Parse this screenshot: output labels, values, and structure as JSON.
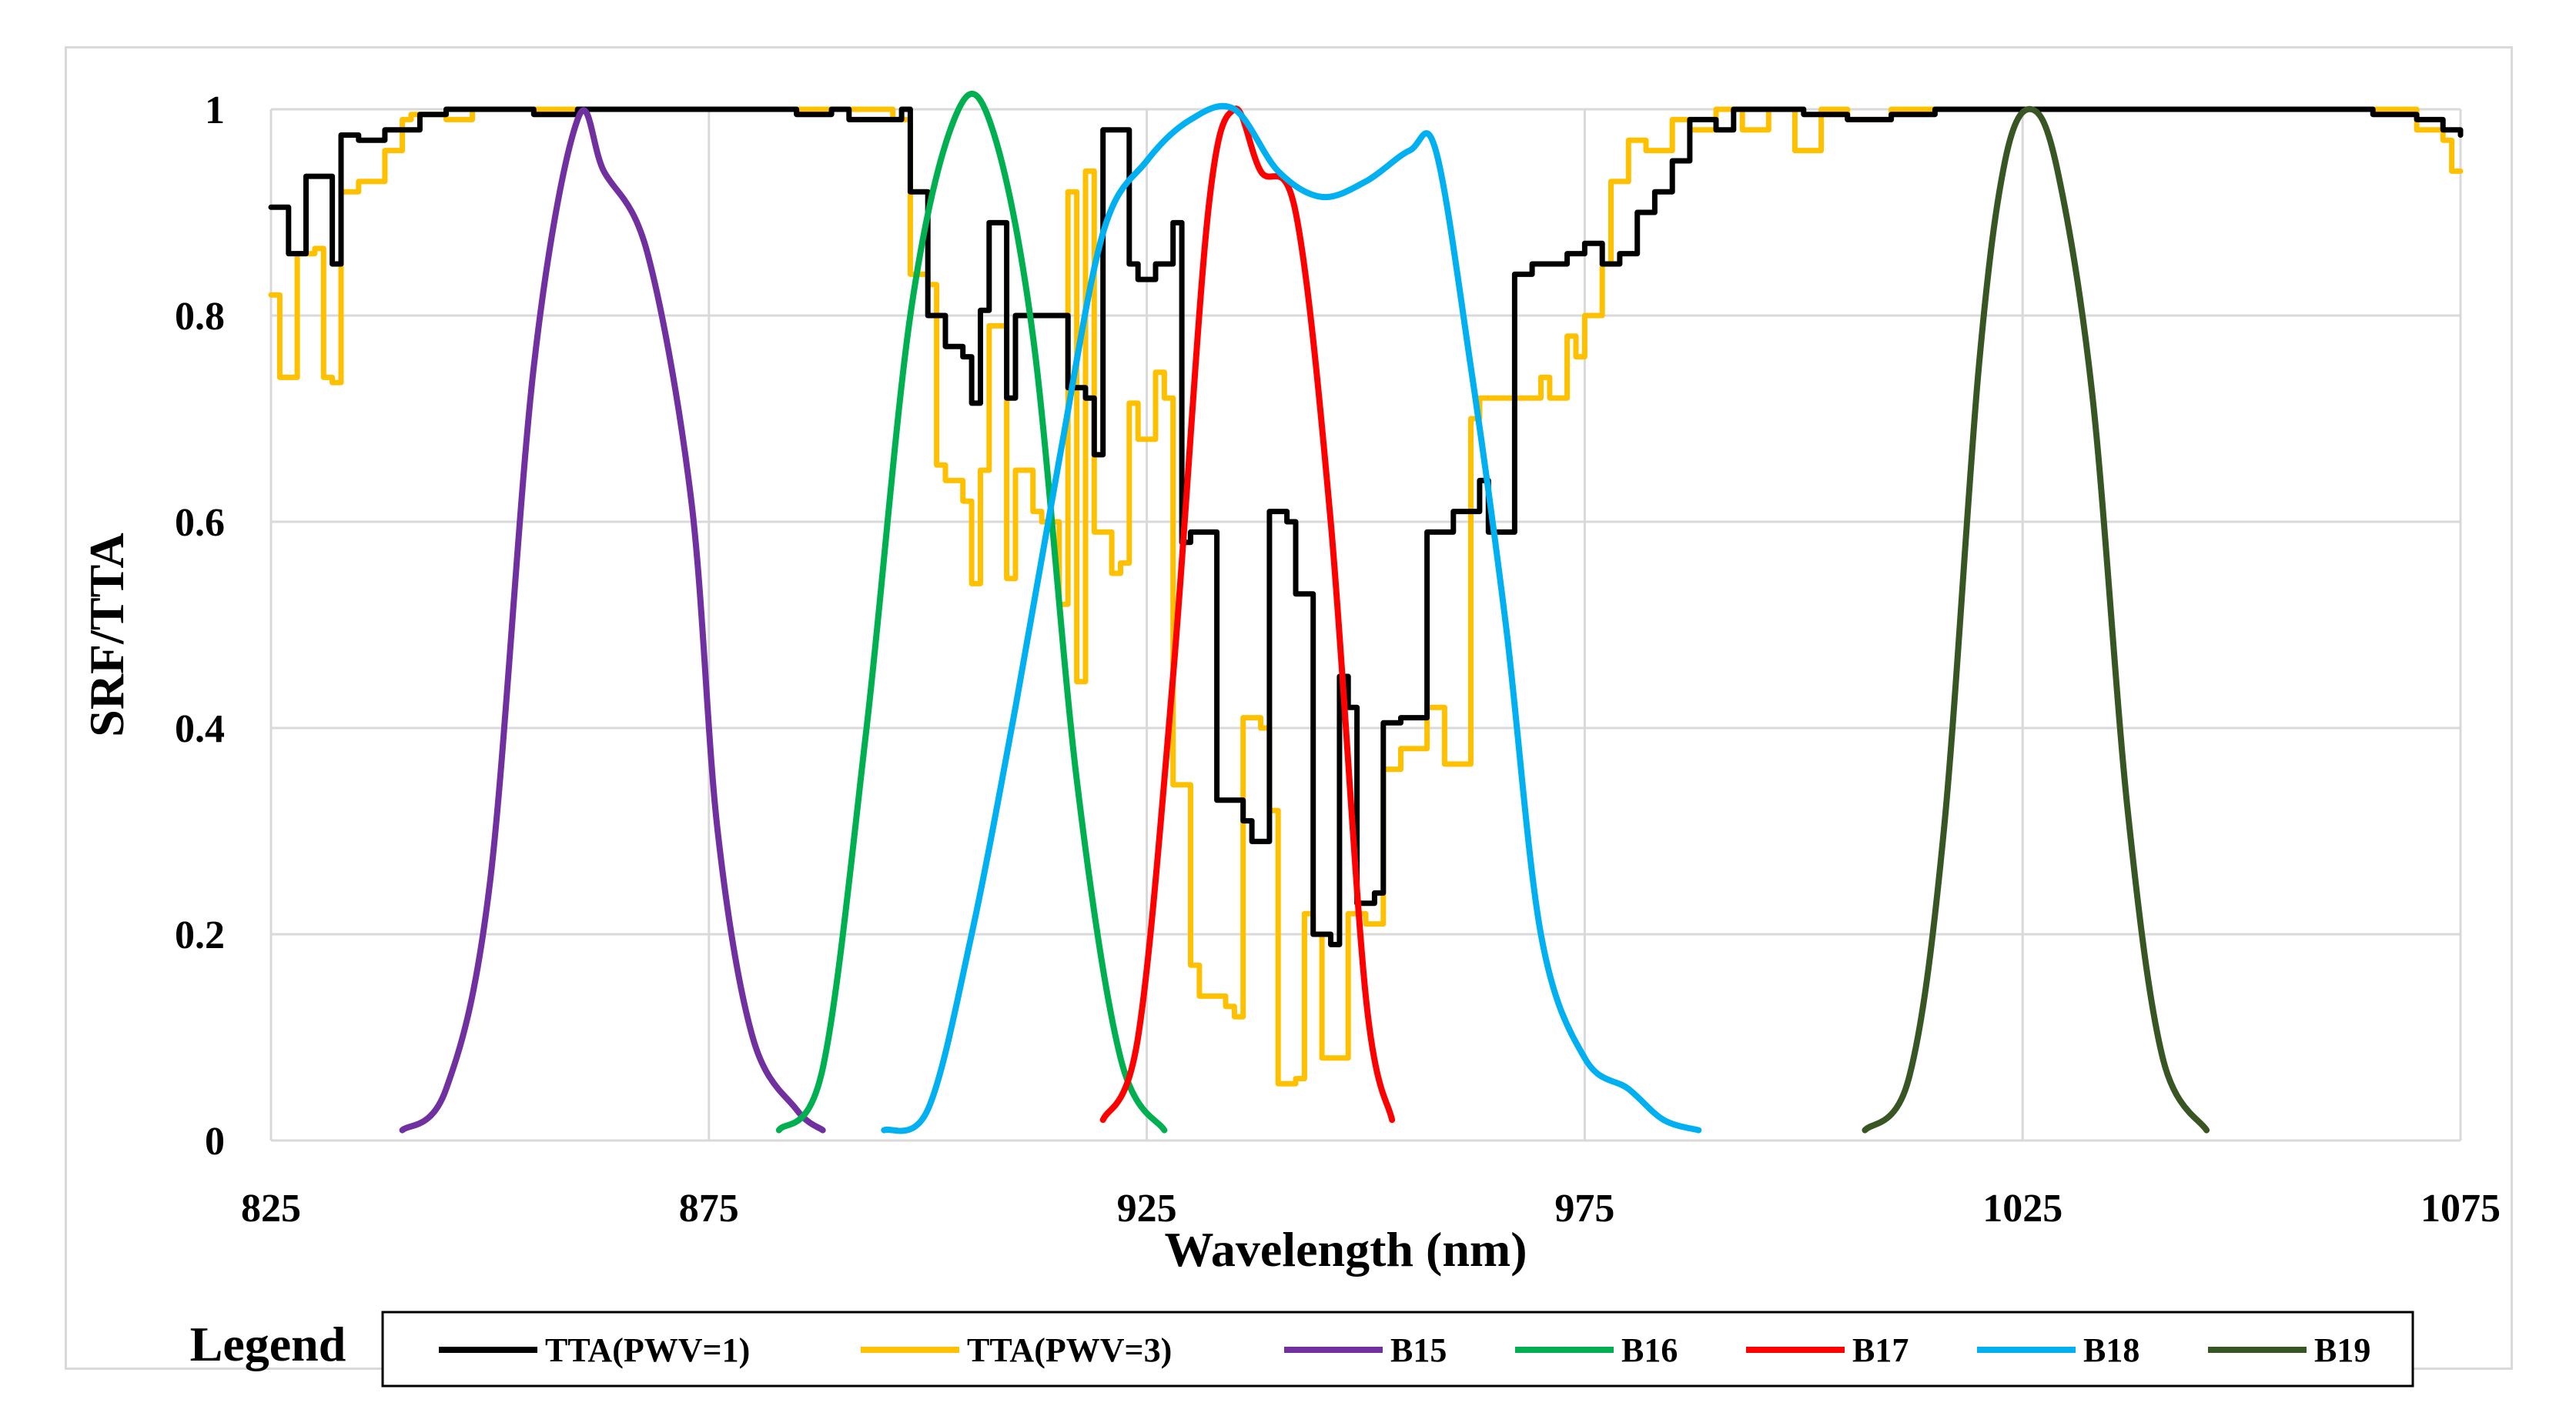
{
  "chart_data": {
    "type": "line",
    "title": "",
    "xlabel": "Wavelength (nm)",
    "ylabel": "SRF/TTA",
    "xlim": [
      825,
      1075
    ],
    "ylim": [
      0,
      1
    ],
    "x_ticks": [
      825,
      875,
      925,
      975,
      1025,
      1075
    ],
    "x_tick_labels": [
      "825",
      "875",
      "925",
      "975",
      "1025",
      "1075"
    ],
    "y_ticks": [
      0,
      0.2,
      0.4,
      0.6,
      0.8,
      1
    ],
    "y_tick_labels": [
      "0",
      "0.2",
      "0.4",
      "0.6",
      "0.8",
      "1"
    ],
    "grid": true,
    "legend_title": "Legend",
    "legend_position": "bottom",
    "series": [
      {
        "name": "TTA(PWV=1)",
        "color": "#000000",
        "step": true,
        "points": [
          [
            825,
            0.905
          ],
          [
            827,
            0.86
          ],
          [
            829,
            0.935
          ],
          [
            832,
            0.85
          ],
          [
            833,
            0.975
          ],
          [
            835,
            0.97
          ],
          [
            838,
            0.98
          ],
          [
            841,
            0.98
          ],
          [
            842,
            0.995
          ],
          [
            845,
            1.0
          ],
          [
            850,
            1.0
          ],
          [
            855,
            0.995
          ],
          [
            860,
            1.0
          ],
          [
            865,
            1.0
          ],
          [
            870,
            1.0
          ],
          [
            880,
            1.0
          ],
          [
            885,
            0.995
          ],
          [
            889,
            1.0
          ],
          [
            891,
            0.99
          ],
          [
            895,
            0.99
          ],
          [
            897,
            1.0
          ],
          [
            898,
            0.92
          ],
          [
            900,
            0.8
          ],
          [
            902,
            0.77
          ],
          [
            904,
            0.76
          ],
          [
            905,
            0.715
          ],
          [
            906,
            0.805
          ],
          [
            907,
            0.89
          ],
          [
            909,
            0.72
          ],
          [
            910,
            0.8
          ],
          [
            914,
            0.8
          ],
          [
            916,
            0.73
          ],
          [
            918,
            0.72
          ],
          [
            919,
            0.665
          ],
          [
            920,
            0.98
          ],
          [
            922,
            0.98
          ],
          [
            923,
            0.85
          ],
          [
            924,
            0.835
          ],
          [
            926,
            0.85
          ],
          [
            928,
            0.89
          ],
          [
            929,
            0.58
          ],
          [
            930,
            0.59
          ],
          [
            933,
            0.33
          ],
          [
            936,
            0.31
          ],
          [
            937,
            0.29
          ],
          [
            939,
            0.61
          ],
          [
            941,
            0.6
          ],
          [
            942,
            0.53
          ],
          [
            944,
            0.2
          ],
          [
            946,
            0.19
          ],
          [
            947,
            0.45
          ],
          [
            948,
            0.42
          ],
          [
            949,
            0.23
          ],
          [
            951,
            0.24
          ],
          [
            952,
            0.405
          ],
          [
            954,
            0.41
          ],
          [
            956,
            0.41
          ],
          [
            957,
            0.59
          ],
          [
            960,
            0.61
          ],
          [
            963,
            0.64
          ],
          [
            964,
            0.59
          ],
          [
            966,
            0.59
          ],
          [
            967,
            0.84
          ],
          [
            969,
            0.85
          ],
          [
            971,
            0.85
          ],
          [
            973,
            0.86
          ],
          [
            975,
            0.87
          ],
          [
            977,
            0.85
          ],
          [
            979,
            0.86
          ],
          [
            981,
            0.9
          ],
          [
            983,
            0.92
          ],
          [
            985,
            0.95
          ],
          [
            987,
            0.99
          ],
          [
            990,
            0.98
          ],
          [
            992,
            1.0
          ],
          [
            995,
            1.0
          ],
          [
            1000,
            0.995
          ],
          [
            1005,
            0.99
          ],
          [
            1010,
            0.995
          ],
          [
            1015,
            1.0
          ],
          [
            1020,
            1.0
          ],
          [
            1025,
            1.0
          ],
          [
            1030,
            1.0
          ],
          [
            1040,
            1.0
          ],
          [
            1050,
            1.0
          ],
          [
            1060,
            1.0
          ],
          [
            1065,
            0.995
          ],
          [
            1070,
            0.99
          ],
          [
            1073,
            0.98
          ],
          [
            1075,
            0.975
          ]
        ]
      },
      {
        "name": "TTA(PWV=3)",
        "color": "#FFC000",
        "step": true,
        "points": [
          [
            825,
            0.82
          ],
          [
            826,
            0.74
          ],
          [
            828,
            0.86
          ],
          [
            830,
            0.865
          ],
          [
            831,
            0.74
          ],
          [
            832,
            0.735
          ],
          [
            833,
            0.92
          ],
          [
            835,
            0.93
          ],
          [
            838,
            0.96
          ],
          [
            840,
            0.99
          ],
          [
            841,
            0.995
          ],
          [
            845,
            0.99
          ],
          [
            848,
            1.0
          ],
          [
            855,
            1.0
          ],
          [
            860,
            1.0
          ],
          [
            870,
            1.0
          ],
          [
            880,
            1.0
          ],
          [
            885,
            1.0
          ],
          [
            890,
            1.0
          ],
          [
            895,
            1.0
          ],
          [
            896,
            0.99
          ],
          [
            898,
            0.84
          ],
          [
            900,
            0.83
          ],
          [
            901,
            0.655
          ],
          [
            902,
            0.64
          ],
          [
            904,
            0.62
          ],
          [
            905,
            0.54
          ],
          [
            906,
            0.65
          ],
          [
            907,
            0.79
          ],
          [
            909,
            0.545
          ],
          [
            910,
            0.65
          ],
          [
            912,
            0.61
          ],
          [
            913,
            0.6
          ],
          [
            915,
            0.52
          ],
          [
            916,
            0.92
          ],
          [
            917,
            0.445
          ],
          [
            918,
            0.94
          ],
          [
            919,
            0.59
          ],
          [
            921,
            0.55
          ],
          [
            922,
            0.56
          ],
          [
            923,
            0.715
          ],
          [
            924,
            0.68
          ],
          [
            926,
            0.745
          ],
          [
            927,
            0.72
          ],
          [
            928,
            0.345
          ],
          [
            930,
            0.17
          ],
          [
            931,
            0.14
          ],
          [
            934,
            0.13
          ],
          [
            935,
            0.12
          ],
          [
            936,
            0.41
          ],
          [
            938,
            0.4
          ],
          [
            939,
            0.32
          ],
          [
            940,
            0.055
          ],
          [
            942,
            0.06
          ],
          [
            943,
            0.22
          ],
          [
            944,
            0.2
          ],
          [
            945,
            0.08
          ],
          [
            947,
            0.08
          ],
          [
            948,
            0.22
          ],
          [
            950,
            0.21
          ],
          [
            952,
            0.36
          ],
          [
            954,
            0.38
          ],
          [
            956,
            0.38
          ],
          [
            957,
            0.42
          ],
          [
            959,
            0.365
          ],
          [
            961,
            0.365
          ],
          [
            962,
            0.7
          ],
          [
            963,
            0.72
          ],
          [
            966,
            0.72
          ],
          [
            968,
            0.72
          ],
          [
            970,
            0.74
          ],
          [
            971,
            0.72
          ],
          [
            973,
            0.78
          ],
          [
            974,
            0.76
          ],
          [
            975,
            0.8
          ],
          [
            977,
            0.85
          ],
          [
            978,
            0.93
          ],
          [
            980,
            0.97
          ],
          [
            982,
            0.96
          ],
          [
            985,
            0.99
          ],
          [
            987,
            0.98
          ],
          [
            990,
            1.0
          ],
          [
            993,
            0.98
          ],
          [
            996,
            1.0
          ],
          [
            999,
            0.96
          ],
          [
            1002,
            1.0
          ],
          [
            1005,
            0.99
          ],
          [
            1010,
            1.0
          ],
          [
            1015,
            1.0
          ],
          [
            1020,
            1.0
          ],
          [
            1025,
            1.0
          ],
          [
            1030,
            1.0
          ],
          [
            1040,
            1.0
          ],
          [
            1050,
            1.0
          ],
          [
            1060,
            1.0
          ],
          [
            1065,
            1.0
          ],
          [
            1070,
            0.98
          ],
          [
            1073,
            0.97
          ],
          [
            1074,
            0.94
          ],
          [
            1075,
            0.94
          ]
        ]
      },
      {
        "name": "B15",
        "color": "#7030A0",
        "step": false,
        "points": [
          [
            840,
            0.01
          ],
          [
            845,
            0.05
          ],
          [
            850,
            0.25
          ],
          [
            855,
            0.75
          ],
          [
            860,
            0.99
          ],
          [
            863,
            0.94
          ],
          [
            868,
            0.86
          ],
          [
            873,
            0.62
          ],
          [
            876,
            0.3
          ],
          [
            880,
            0.1
          ],
          [
            885,
            0.03
          ],
          [
            888,
            0.01
          ]
        ]
      },
      {
        "name": "B16",
        "color": "#00B050",
        "step": false,
        "points": [
          [
            883,
            0.01
          ],
          [
            888,
            0.07
          ],
          [
            893,
            0.4
          ],
          [
            898,
            0.8
          ],
          [
            903,
            0.99
          ],
          [
            907,
            0.99
          ],
          [
            912,
            0.78
          ],
          [
            917,
            0.35
          ],
          [
            922,
            0.08
          ],
          [
            927,
            0.01
          ]
        ]
      },
      {
        "name": "B17",
        "color": "#FF0000",
        "step": false,
        "points": [
          [
            920,
            0.02
          ],
          [
            924,
            0.1
          ],
          [
            928,
            0.45
          ],
          [
            932,
            0.9
          ],
          [
            935,
            1.0
          ],
          [
            938,
            0.94
          ],
          [
            942,
            0.9
          ],
          [
            946,
            0.6
          ],
          [
            950,
            0.14
          ],
          [
            953,
            0.02
          ]
        ]
      },
      {
        "name": "B18",
        "color": "#00B0F0",
        "step": false,
        "points": [
          [
            895,
            0.01
          ],
          [
            900,
            0.03
          ],
          [
            905,
            0.2
          ],
          [
            910,
            0.42
          ],
          [
            915,
            0.66
          ],
          [
            920,
            0.88
          ],
          [
            925,
            0.95
          ],
          [
            930,
            0.99
          ],
          [
            935,
            1.0
          ],
          [
            940,
            0.94
          ],
          [
            945,
            0.915
          ],
          [
            950,
            0.93
          ],
          [
            955,
            0.96
          ],
          [
            958,
            0.96
          ],
          [
            962,
            0.75
          ],
          [
            966,
            0.5
          ],
          [
            970,
            0.2
          ],
          [
            975,
            0.08
          ],
          [
            980,
            0.05
          ],
          [
            984,
            0.02
          ],
          [
            988,
            0.01
          ]
        ]
      },
      {
        "name": "B19",
        "color": "#375623",
        "step": false,
        "points": [
          [
            1007,
            0.01
          ],
          [
            1012,
            0.06
          ],
          [
            1016,
            0.3
          ],
          [
            1020,
            0.75
          ],
          [
            1023,
            0.95
          ],
          [
            1026,
            1.0
          ],
          [
            1029,
            0.94
          ],
          [
            1033,
            0.72
          ],
          [
            1037,
            0.32
          ],
          [
            1041,
            0.08
          ],
          [
            1046,
            0.01
          ]
        ]
      }
    ]
  }
}
